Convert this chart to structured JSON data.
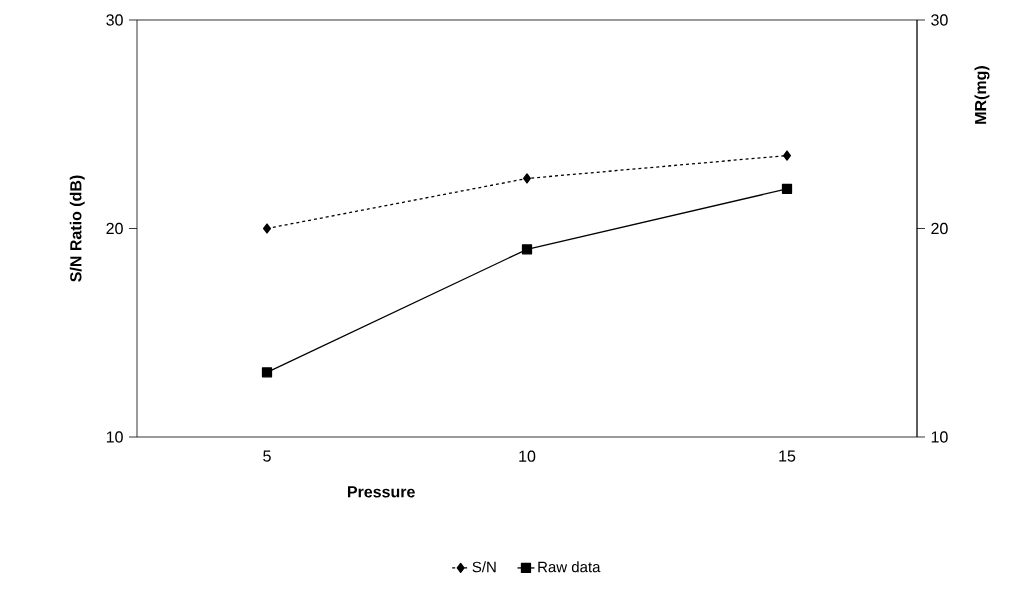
{
  "chart_data": {
    "type": "line",
    "xlabel": "Pressure",
    "ylabel": "S/N Ratio (dB)",
    "y2label": "MR(mg)",
    "categories": [
      "5",
      "10",
      "15"
    ],
    "series": [
      {
        "name": "S/N",
        "color": "#000000",
        "values": [
          20,
          22.4,
          23.5
        ],
        "marker": "diamond",
        "line_style": "dashed"
      },
      {
        "name": "Raw data",
        "color": "#000000",
        "values": [
          13.1,
          19.0,
          21.9
        ],
        "marker": "square",
        "line_style": "solid",
        "axis": "y2"
      }
    ],
    "ylim": [
      10,
      30
    ],
    "yticks": [
      10,
      20,
      30
    ],
    "y2lim": [
      10,
      30
    ],
    "y2ticks": [
      10,
      20,
      30
    ],
    "grid": false,
    "legend": "bottom"
  }
}
